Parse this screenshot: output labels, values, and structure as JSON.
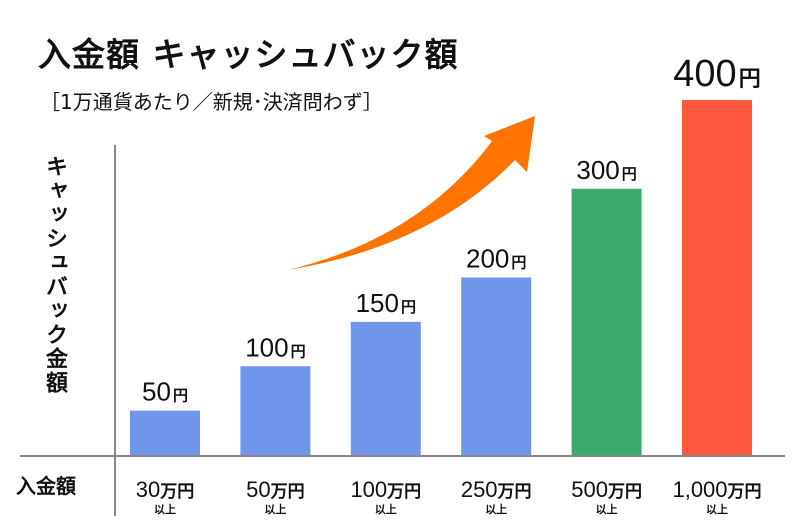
{
  "chart_data": {
    "type": "bar",
    "title": "入金額 キャッシュバック額",
    "subtitle": "［1万通貨あたり／新規･決済問わず］",
    "ylabel": "キャッシュバック金額",
    "xlabel": "入金額",
    "categories": [
      {
        "amount": "30",
        "unit": "万円",
        "suffix": "以上"
      },
      {
        "amount": "50",
        "unit": "万円",
        "suffix": "以上"
      },
      {
        "amount": "100",
        "unit": "万円",
        "suffix": "以上"
      },
      {
        "amount": "250",
        "unit": "万円",
        "suffix": "以上"
      },
      {
        "amount": "500",
        "unit": "万円",
        "suffix": "以上"
      },
      {
        "amount": "1,000",
        "unit": "万円",
        "suffix": "以上"
      }
    ],
    "values": [
      50,
      100,
      150,
      200,
      300,
      400
    ],
    "value_unit": "円",
    "bar_colors": [
      "#7096EB",
      "#7096EB",
      "#7096EB",
      "#7096EB",
      "#3AAA6D",
      "#FF5A40"
    ],
    "ylim": [
      0,
      400
    ],
    "grid": false,
    "arrow_color": "#FF7300"
  }
}
